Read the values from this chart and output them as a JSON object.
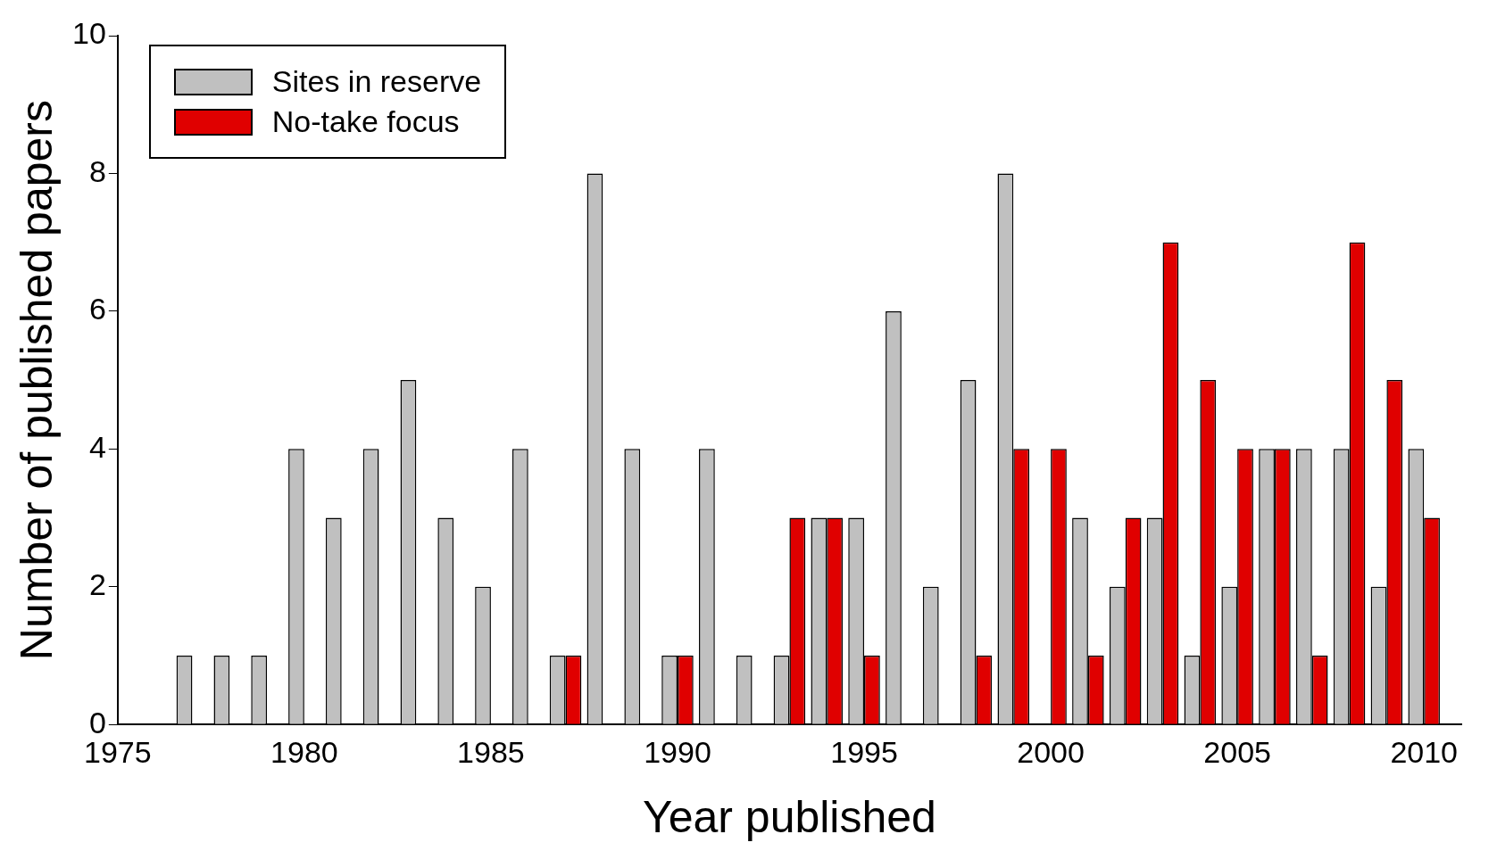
{
  "chart_data": {
    "type": "bar",
    "xlabel": "Year published",
    "ylabel": "Number of published papers",
    "x": [
      1977,
      1978,
      1979,
      1980,
      1981,
      1982,
      1983,
      1984,
      1985,
      1986,
      1987,
      1988,
      1989,
      1990,
      1991,
      1992,
      1993,
      1994,
      1995,
      1996,
      1997,
      1998,
      1999,
      2000,
      2001,
      2002,
      2003,
      2004,
      2005,
      2006,
      2007,
      2008,
      2009,
      2010
    ],
    "series": [
      {
        "name": "Sites in reserve",
        "color": "#c0c0c0",
        "values": [
          1,
          1,
          1,
          4,
          3,
          4,
          5,
          3,
          2,
          4,
          1,
          8,
          4,
          1,
          4,
          1,
          1,
          3,
          3,
          6,
          2,
          5,
          8,
          0,
          3,
          2,
          3,
          1,
          2,
          4,
          4,
          4,
          2,
          4
        ]
      },
      {
        "name": "No-take focus",
        "color": "#e00000",
        "values": [
          0,
          0,
          0,
          0,
          0,
          0,
          0,
          0,
          0,
          0,
          1,
          0,
          0,
          1,
          0,
          0,
          3,
          3,
          1,
          0,
          0,
          1,
          4,
          4,
          1,
          3,
          7,
          5,
          4,
          4,
          1,
          7,
          5,
          3
        ]
      }
    ],
    "xlim": [
      1975,
      2011
    ],
    "xticks": [
      1975,
      1980,
      1985,
      1990,
      1995,
      2000,
      2005,
      2010
    ],
    "ylim": [
      0,
      10
    ],
    "yticks": [
      0,
      2,
      4,
      6,
      8,
      10
    ],
    "grid": false,
    "legend": "top left"
  }
}
